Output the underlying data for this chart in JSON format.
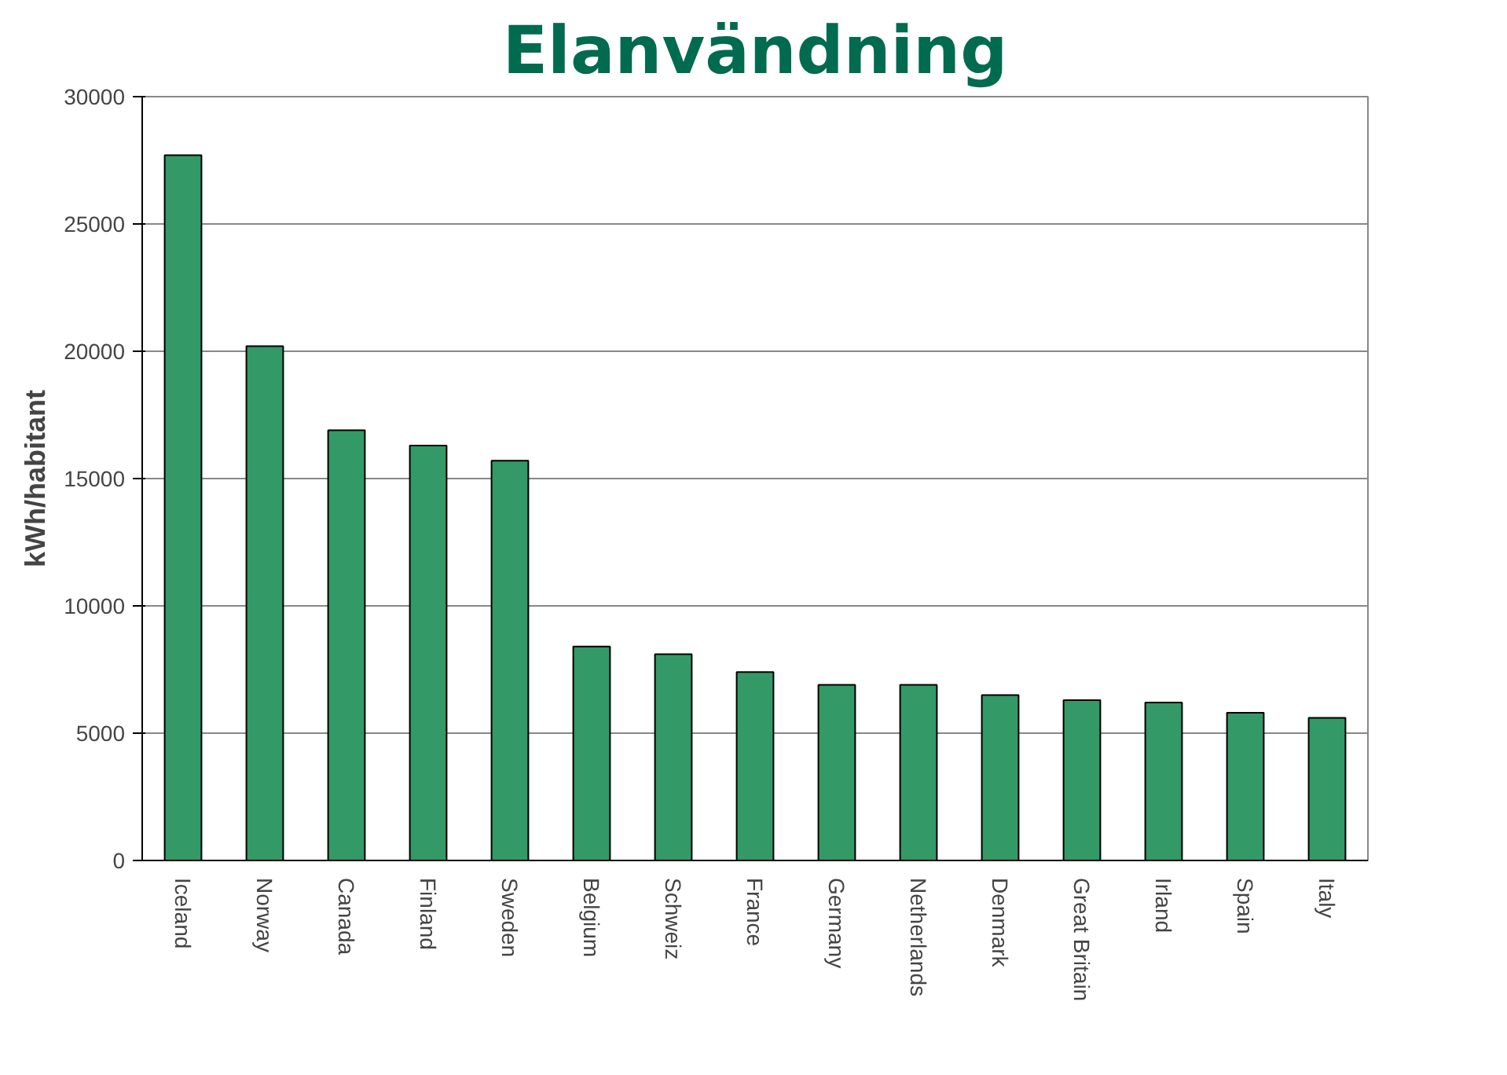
{
  "chart_data": {
    "type": "bar",
    "title": "Elanvändning",
    "ylabel": "kWh/habitant",
    "categories": [
      "Iceland",
      "Norway",
      "Canada",
      "Finland",
      "Sweden",
      "Belgium",
      "Schweiz",
      "France",
      "Germany",
      "Netherlands",
      "Denmark",
      "Great Britain",
      "Irland",
      "Spain",
      "Italy"
    ],
    "series": [
      {
        "color": "#339966",
        "values": [
          27700,
          20200,
          16900,
          16300,
          15700,
          8400,
          8100,
          7400,
          6900,
          6900,
          6500,
          6300,
          6200,
          5800,
          5600
        ]
      }
    ],
    "ylim": [
      0,
      30000
    ],
    "yticks": [
      0,
      5000,
      10000,
      15000,
      20000,
      25000,
      30000
    ],
    "grid": "y"
  }
}
